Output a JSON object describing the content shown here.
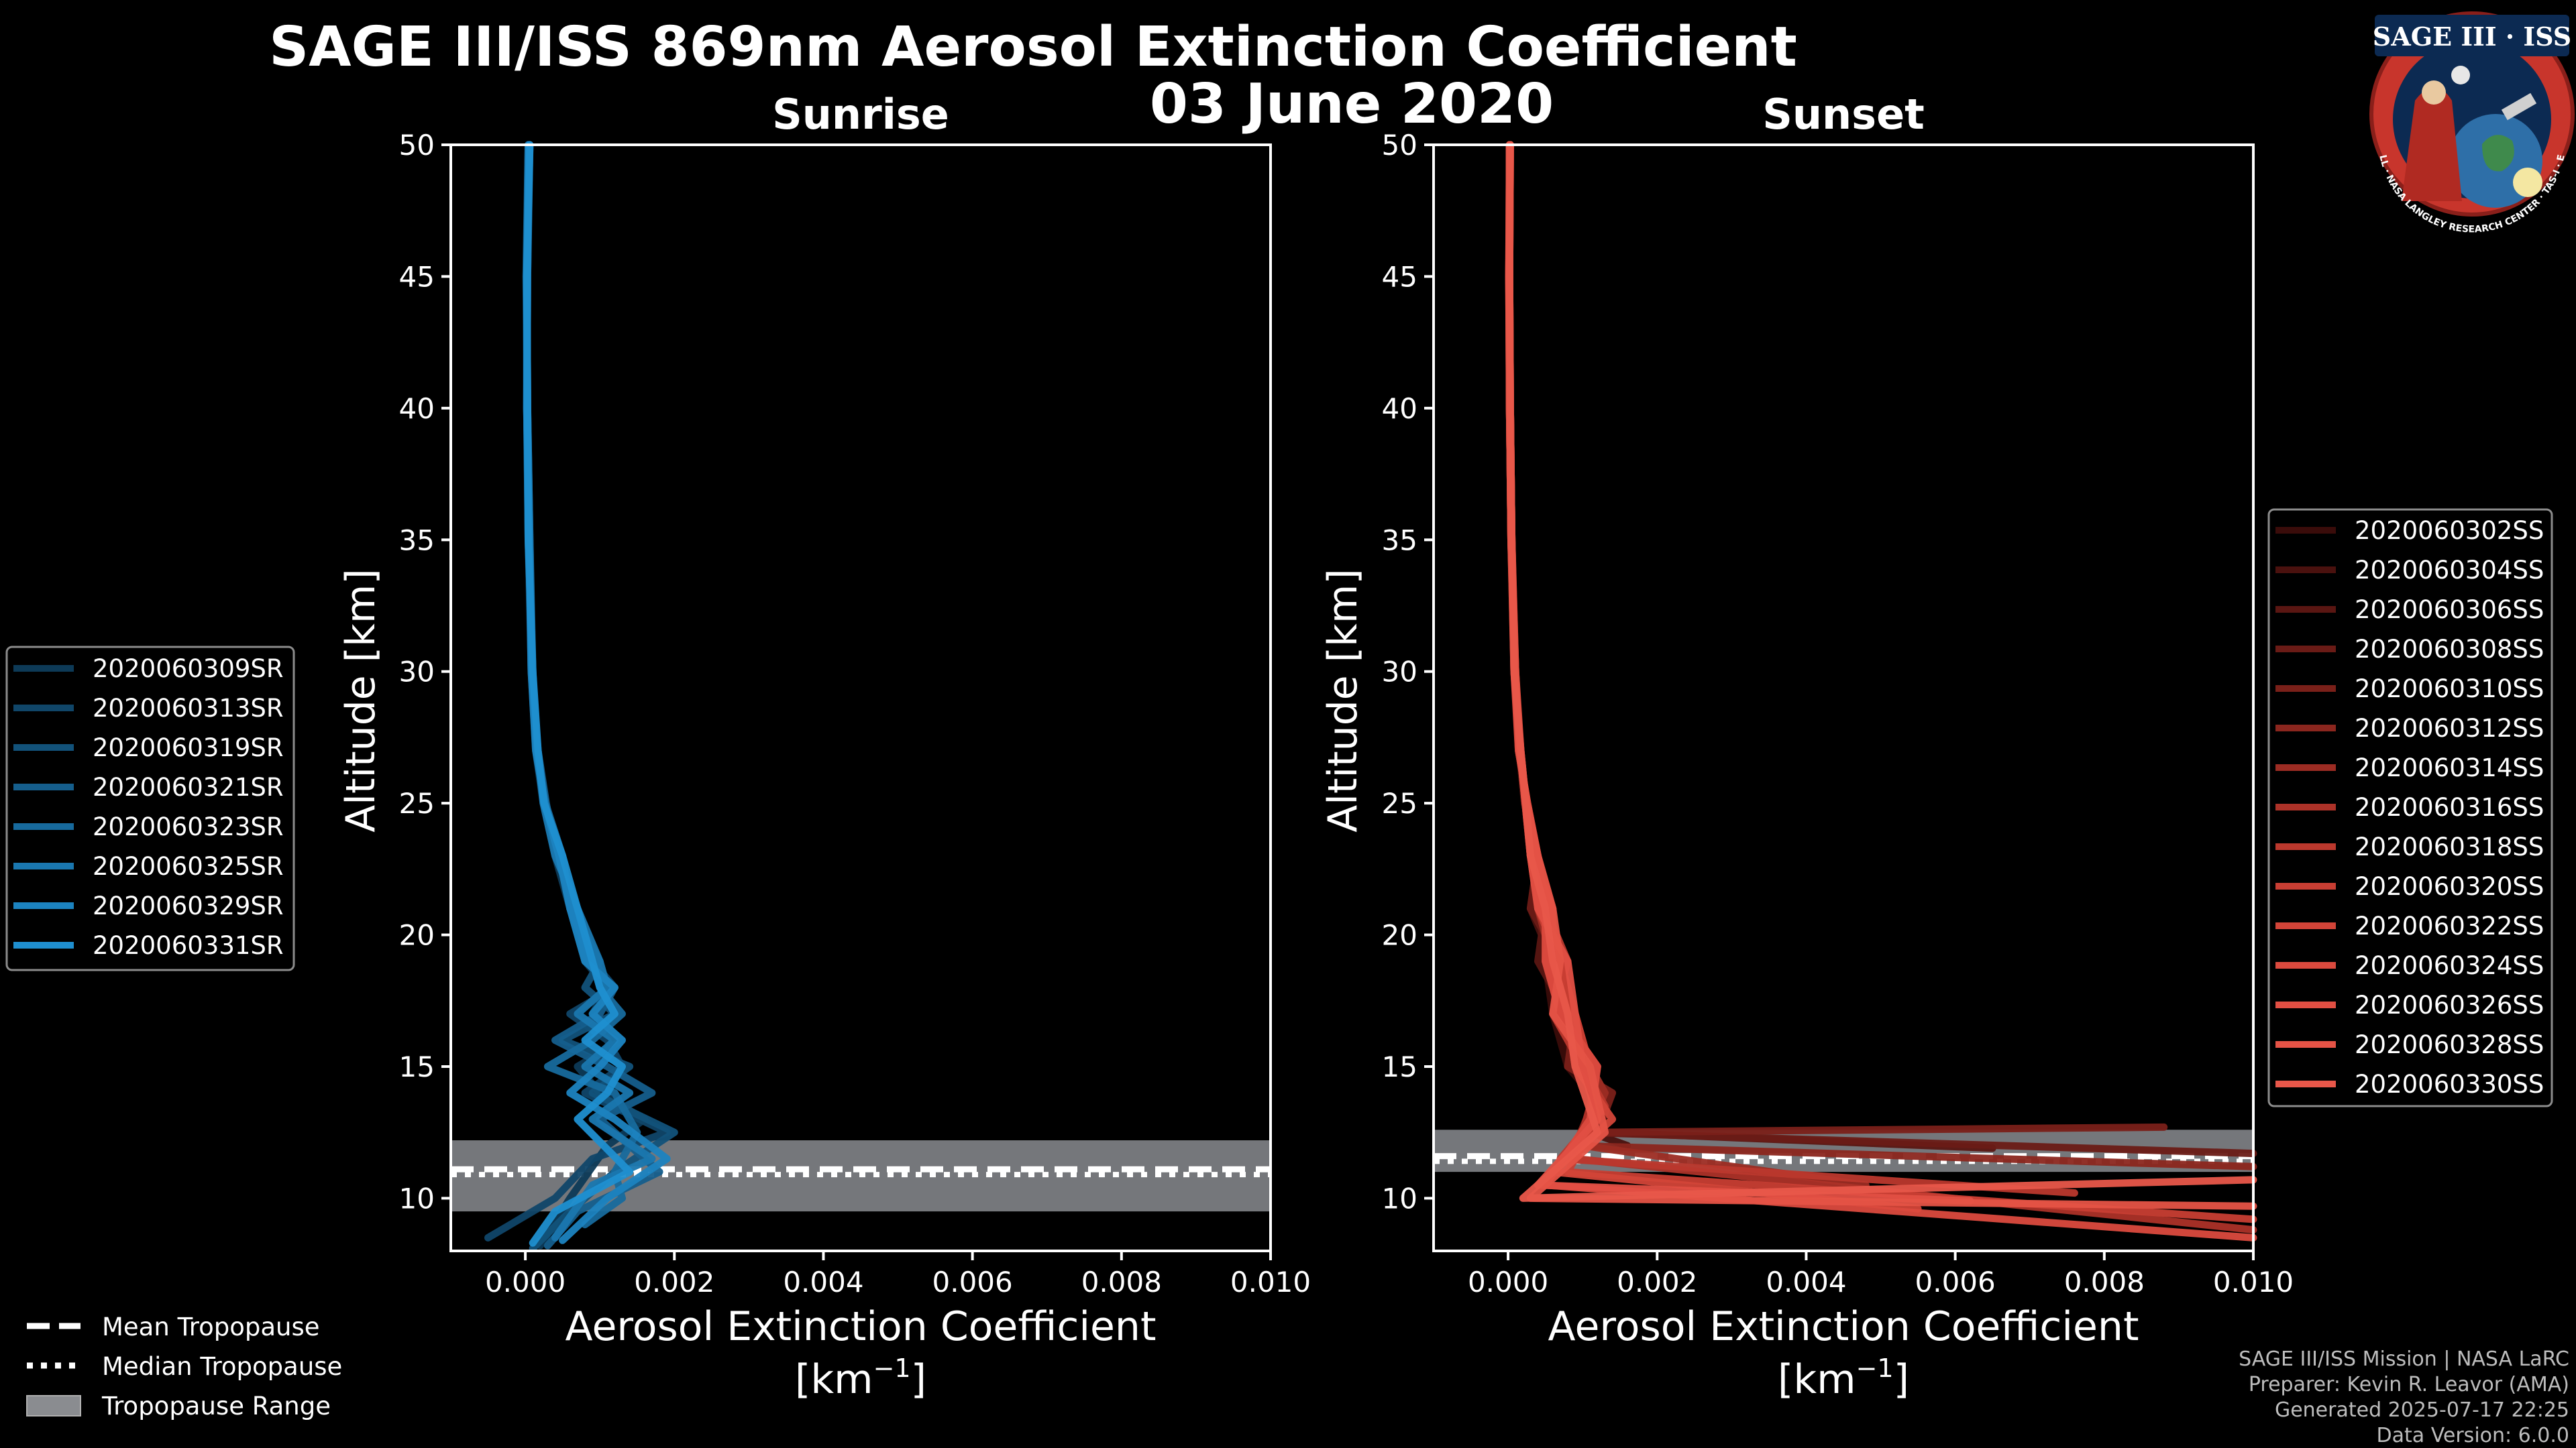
{
  "title_line1": "SAGE III/ISS 869nm Aerosol Extinction Coefficient",
  "title_line2": "03 June 2020",
  "logo": {
    "text": "SAGE III · ISS",
    "ring_text": "BALL · NASA LANGLEY RESEARCH CENTER · TAS-I · ESA"
  },
  "credits": [
    "SAGE III/ISS Mission | NASA LaRC",
    "Preparer: Kevin R. Leavor (AMA)",
    "Generated 2025-07-17 22:25",
    "Data Version: 6.0.0"
  ],
  "tropopause_legend": [
    "Mean Tropopause",
    "Median Tropopause",
    "Tropopause Range"
  ],
  "colors": {
    "sunrise": "#1f8fd0",
    "sunset": "#e8574a",
    "trop_range": "#8a8c90",
    "background": "#000000"
  },
  "chart_data": [
    {
      "type": "line",
      "title": "Sunrise",
      "xlabel": "Aerosol Extinction Coefficient",
      "xunit": "[km",
      "xunit_sup": "−1",
      "xunit_close": "]",
      "ylabel": "Altitude [km]",
      "xlim": [
        -0.001,
        0.01
      ],
      "ylim": [
        8,
        50
      ],
      "xticks": [
        0.0,
        0.002,
        0.004,
        0.006,
        0.008,
        0.01
      ],
      "xtick_labels": [
        "0.000",
        "0.002",
        "0.004",
        "0.006",
        "0.008",
        "0.010"
      ],
      "yticks": [
        10,
        15,
        20,
        25,
        30,
        35,
        40,
        45,
        50
      ],
      "ytick_labels": [
        "10",
        "15",
        "20",
        "25",
        "30",
        "35",
        "40",
        "45",
        "50"
      ],
      "tropopause": {
        "mean": 11.1,
        "median": 10.9,
        "range": [
          9.5,
          12.2
        ]
      },
      "series": [
        {
          "name": "2020060309SR",
          "color": "#0d3a57",
          "x": [
            6e-05,
            2e-05,
            2e-05,
            4e-05,
            8e-05,
            0.00014,
            0.00024,
            0.0004,
            0.0006,
            0.0008,
            0.0011,
            0.0009,
            0.0013,
            0.0007,
            0.001,
            0.0016,
            0.0011,
            0.0006,
            0.0002
          ],
          "y": [
            50,
            45,
            40,
            35,
            30,
            27,
            25,
            23,
            21,
            19,
            18,
            17,
            16,
            15,
            14,
            13,
            12,
            10,
            8.2
          ]
        },
        {
          "name": "2020060313SR",
          "color": "#104669",
          "x": [
            5e-05,
            2e-05,
            3e-05,
            5e-05,
            9e-05,
            0.00016,
            0.00026,
            0.00045,
            0.0007,
            0.0009,
            0.0012,
            0.0006,
            0.0011,
            0.0013,
            0.0008,
            0.0019,
            0.0009,
            0.0004,
            -0.0005
          ],
          "y": [
            50,
            45,
            40,
            35,
            30,
            27,
            25,
            23,
            21,
            19,
            18,
            17,
            16,
            15,
            14,
            12.5,
            11.5,
            10,
            8.5
          ]
        },
        {
          "name": "2020060319SR",
          "color": "#12527a",
          "x": [
            4e-05,
            1e-05,
            3e-05,
            6e-05,
            0.0001,
            0.00015,
            0.00025,
            0.0005,
            0.0006,
            0.001,
            0.0008,
            0.0012,
            0.0005,
            0.0014,
            0.0009,
            0.002,
            0.0012,
            0.0006,
            0.0001
          ],
          "y": [
            50,
            45,
            40,
            35,
            30,
            27,
            25,
            23,
            21,
            19,
            18,
            17,
            16,
            15,
            14,
            12.5,
            11,
            9.5,
            8.1
          ]
        },
        {
          "name": "2020060321SR",
          "color": "#155e8c",
          "x": [
            6e-05,
            3e-05,
            2e-05,
            5e-05,
            8e-05,
            0.00017,
            0.00028,
            0.00042,
            0.0007,
            0.0008,
            0.0012,
            0.001,
            0.0004,
            0.0011,
            0.0017,
            0.001,
            0.0018,
            0.0007,
            0.0003
          ],
          "y": [
            50,
            45,
            40,
            35,
            30,
            27,
            25,
            23,
            21,
            19,
            18,
            17,
            16,
            15,
            14,
            13,
            11,
            9.5,
            8.2
          ]
        },
        {
          "name": "2020060323SR",
          "color": "#176a9d",
          "x": [
            5e-05,
            2e-05,
            2e-05,
            4e-05,
            0.0001,
            0.00015,
            0.00027,
            0.0005,
            0.0006,
            0.0009,
            0.001,
            0.0013,
            0.0009,
            0.0003,
            0.0012,
            0.0015,
            0.0012,
            0.0013,
            0.0008
          ],
          "y": [
            50,
            45,
            40,
            35,
            30,
            27,
            25,
            23,
            21,
            19,
            18,
            17,
            16,
            15,
            14,
            12.5,
            11,
            10,
            9
          ]
        },
        {
          "name": "2020060325SR",
          "color": "#1a77af",
          "x": [
            4e-05,
            2e-05,
            3e-05,
            6e-05,
            9e-05,
            0.00016,
            0.00024,
            0.0004,
            0.0007,
            0.001,
            0.0011,
            0.0007,
            0.0012,
            0.0008,
            0.0014,
            0.0009,
            0.0017,
            0.0009,
            0.0004
          ],
          "y": [
            50,
            45,
            40,
            35,
            30,
            27,
            25,
            23,
            21,
            19,
            18,
            17,
            16,
            15,
            14,
            13,
            11.5,
            10.5,
            8.5
          ]
        },
        {
          "name": "2020060329SR",
          "color": "#1c83c0",
          "x": [
            5e-05,
            3e-05,
            2e-05,
            5e-05,
            8e-05,
            0.00014,
            0.00026,
            0.00045,
            0.0006,
            0.0008,
            0.0012,
            0.0009,
            0.0013,
            0.001,
            0.0006,
            0.0012,
            0.0019,
            0.0011,
            0.0005
          ],
          "y": [
            50,
            45,
            40,
            35,
            30,
            27,
            25,
            23,
            21,
            19,
            18,
            17,
            16,
            15,
            14,
            13,
            11.5,
            10,
            8.4
          ]
        },
        {
          "name": "2020060331SR",
          "color": "#1f8fd0",
          "x": [
            6e-05,
            2e-05,
            3e-05,
            4e-05,
            0.0001,
            0.00017,
            0.00025,
            0.0005,
            0.0007,
            0.0009,
            0.001,
            0.0012,
            0.0008,
            0.0013,
            0.0011,
            0.0007,
            0.0014,
            0.0004,
            0.0001
          ],
          "y": [
            50,
            45,
            40,
            35,
            30,
            27,
            25,
            23,
            21,
            19,
            18,
            17,
            16,
            15,
            14,
            13,
            11,
            9.5,
            8.3
          ]
        }
      ]
    },
    {
      "type": "line",
      "title": "Sunset",
      "xlabel": "Aerosol Extinction Coefficient",
      "xunit": "[km",
      "xunit_sup": "−1",
      "xunit_close": "]",
      "ylabel": "Altitude [km]",
      "xlim": [
        -0.001,
        0.01
      ],
      "ylim": [
        8,
        50
      ],
      "xticks": [
        0.0,
        0.002,
        0.004,
        0.006,
        0.008,
        0.01
      ],
      "xtick_labels": [
        "0.000",
        "0.002",
        "0.004",
        "0.006",
        "0.008",
        "0.010"
      ],
      "yticks": [
        10,
        15,
        20,
        25,
        30,
        35,
        40,
        45,
        50
      ],
      "ytick_labels": [
        "10",
        "15",
        "20",
        "25",
        "30",
        "35",
        "40",
        "45",
        "50"
      ],
      "tropopause": {
        "mean": 11.6,
        "median": 11.4,
        "range": [
          11.0,
          12.6
        ]
      },
      "series": [
        {
          "name": "2020060302SS",
          "color": "#3a0c0a",
          "x": [
            2e-05,
            2e-05,
            3e-05,
            5e-05,
            9e-05,
            0.00016,
            0.00025,
            0.0003,
            0.0004,
            0.0005,
            0.0006,
            0.0008,
            0.0011,
            0.0012,
            0.001
          ],
          "y": [
            50,
            45,
            40,
            35,
            30,
            27,
            25,
            23,
            21,
            19,
            17,
            15,
            14,
            13,
            12
          ]
        },
        {
          "name": "2020060304SS",
          "color": "#4a110e",
          "x": [
            3e-05,
            1e-05,
            2e-05,
            4e-05,
            0.0001,
            0.00015,
            0.00022,
            0.0004,
            0.0003,
            0.0006,
            0.0007,
            0.0009,
            0.0012,
            0.0011,
            0.0016
          ],
          "y": [
            50,
            45,
            40,
            35,
            30,
            27,
            25,
            23,
            21,
            19,
            17,
            15,
            13.5,
            12.5,
            12
          ]
        },
        {
          "name": "2020060306SS",
          "color": "#5a1612",
          "x": [
            2e-05,
            2e-05,
            3e-05,
            5e-05,
            8e-05,
            0.00017,
            0.00024,
            0.0003,
            0.0005,
            0.0004,
            0.0008,
            0.001,
            0.0011,
            0.0013,
            0.0065
          ],
          "y": [
            50,
            45,
            40,
            35,
            30,
            27,
            25,
            23,
            21,
            19,
            17,
            15,
            14,
            12.5,
            11.9
          ]
        },
        {
          "name": "2020060308SS",
          "color": "#6a1b16",
          "x": [
            3e-05,
            2e-05,
            2e-05,
            4e-05,
            9e-05,
            0.00014,
            0.00026,
            0.0004,
            0.0003,
            0.0007,
            0.0006,
            0.0011,
            0.0013,
            0.001,
            0.01
          ],
          "y": [
            50,
            45,
            40,
            35,
            30,
            27,
            25,
            23,
            21,
            19,
            17,
            15,
            14,
            12.5,
            11.7
          ]
        },
        {
          "name": "2020060310SS",
          "color": "#7a2019",
          "x": [
            2e-05,
            1e-05,
            3e-05,
            5e-05,
            0.0001,
            0.00016,
            0.00023,
            0.0003,
            0.0006,
            0.0005,
            0.0009,
            0.0008,
            0.0014,
            0.0012,
            0.0088
          ],
          "y": [
            50,
            45,
            40,
            35,
            30,
            27,
            25,
            23,
            21,
            19,
            17,
            15,
            14,
            12.5,
            12.7
          ]
        },
        {
          "name": "2020060312SS",
          "color": "#8b261e",
          "x": [
            3e-05,
            2e-05,
            2e-05,
            4e-05,
            8e-05,
            0.00015,
            0.00025,
            0.0004,
            0.0005,
            0.0007,
            0.0008,
            0.001,
            0.0012,
            0.0009,
            0.01
          ],
          "y": [
            50,
            45,
            40,
            35,
            30,
            27,
            25,
            23,
            21,
            19,
            17,
            15,
            14,
            12,
            11.2
          ]
        },
        {
          "name": "2020060314SS",
          "color": "#9c2c23",
          "x": [
            2e-05,
            2e-05,
            3e-05,
            5e-05,
            9e-05,
            0.00017,
            0.00024,
            0.0003,
            0.0004,
            0.0006,
            0.0009,
            0.0011,
            0.0013,
            0.001,
            0.0048
          ],
          "y": [
            50,
            45,
            40,
            35,
            30,
            27,
            25,
            23,
            21,
            19,
            17,
            15,
            14,
            12,
            10.5
          ]
        },
        {
          "name": "2020060316SS",
          "color": "#ac3228",
          "x": [
            3e-05,
            1e-05,
            2e-05,
            4e-05,
            0.0001,
            0.00014,
            0.00026,
            0.0004,
            0.0006,
            0.0005,
            0.0007,
            0.0012,
            0.0011,
            0.0009,
            0.01
          ],
          "y": [
            50,
            45,
            40,
            35,
            30,
            27,
            25,
            23,
            21,
            19,
            17,
            15,
            13.5,
            11.5,
            8.8
          ]
        },
        {
          "name": "2020060318SS",
          "color": "#bb382d",
          "x": [
            2e-05,
            2e-05,
            3e-05,
            5e-05,
            8e-05,
            0.00016,
            0.00023,
            0.0003,
            0.0005,
            0.0008,
            0.0006,
            0.001,
            0.0013,
            0.0007,
            0.0076
          ],
          "y": [
            50,
            45,
            40,
            35,
            30,
            27,
            25,
            23,
            21,
            19,
            17,
            15,
            13.5,
            11.5,
            10.2
          ]
        },
        {
          "name": "2020060320SS",
          "color": "#c83e33",
          "x": [
            3e-05,
            2e-05,
            2e-05,
            4e-05,
            9e-05,
            0.00015,
            0.00025,
            0.0004,
            0.0004,
            0.0007,
            0.0009,
            0.0011,
            0.0012,
            0.0008,
            0.01
          ],
          "y": [
            50,
            45,
            40,
            35,
            30,
            27,
            25,
            23,
            21,
            19,
            17,
            15,
            13,
            11,
            9.2
          ]
        },
        {
          "name": "2020060322SS",
          "color": "#d24438",
          "x": [
            2e-05,
            1e-05,
            3e-05,
            5e-05,
            0.0001,
            0.00017,
            0.00024,
            0.0003,
            0.0006,
            0.0006,
            0.0008,
            0.0009,
            0.0014,
            0.0006,
            0.0055
          ],
          "y": [
            50,
            45,
            40,
            35,
            30,
            27,
            25,
            23,
            21,
            19,
            17,
            15,
            13,
            11,
            9.6
          ]
        },
        {
          "name": "2020060324SS",
          "color": "#db4a3e",
          "x": [
            3e-05,
            2e-05,
            2e-05,
            4e-05,
            8e-05,
            0.00014,
            0.00026,
            0.0004,
            0.0005,
            0.0005,
            0.0007,
            0.0012,
            0.0011,
            0.0005,
            0.01
          ],
          "y": [
            50,
            45,
            40,
            35,
            30,
            27,
            25,
            23,
            21,
            19,
            17,
            15,
            13,
            10.5,
            8.5
          ]
        },
        {
          "name": "2020060326SS",
          "color": "#e14f43",
          "x": [
            2e-05,
            2e-05,
            3e-05,
            5e-05,
            9e-05,
            0.00016,
            0.00023,
            0.0003,
            0.0004,
            0.0008,
            0.0009,
            0.001,
            0.0012,
            0.0004,
            0.0062
          ],
          "y": [
            50,
            45,
            40,
            35,
            30,
            27,
            25,
            23,
            21,
            19,
            17,
            15,
            13,
            10.5,
            9.9
          ]
        },
        {
          "name": "2020060328SS",
          "color": "#e55346",
          "x": [
            3e-05,
            1e-05,
            2e-05,
            4e-05,
            0.0001,
            0.00015,
            0.00025,
            0.0004,
            0.0006,
            0.0007,
            0.0006,
            0.0011,
            0.0013,
            0.0003,
            0.01
          ],
          "y": [
            50,
            45,
            40,
            35,
            30,
            27,
            25,
            23,
            21,
            19,
            17,
            15,
            12.5,
            10,
            9.7
          ]
        },
        {
          "name": "2020060330SS",
          "color": "#e8574a",
          "x": [
            2e-05,
            2e-05,
            3e-05,
            5e-05,
            8e-05,
            0.00017,
            0.00024,
            0.0003,
            0.0005,
            0.0006,
            0.0008,
            0.0009,
            0.0012,
            0.0002,
            0.01
          ],
          "y": [
            50,
            45,
            40,
            35,
            30,
            27,
            25,
            23,
            21,
            19,
            17,
            15,
            12.5,
            10,
            10.7
          ]
        }
      ]
    }
  ]
}
